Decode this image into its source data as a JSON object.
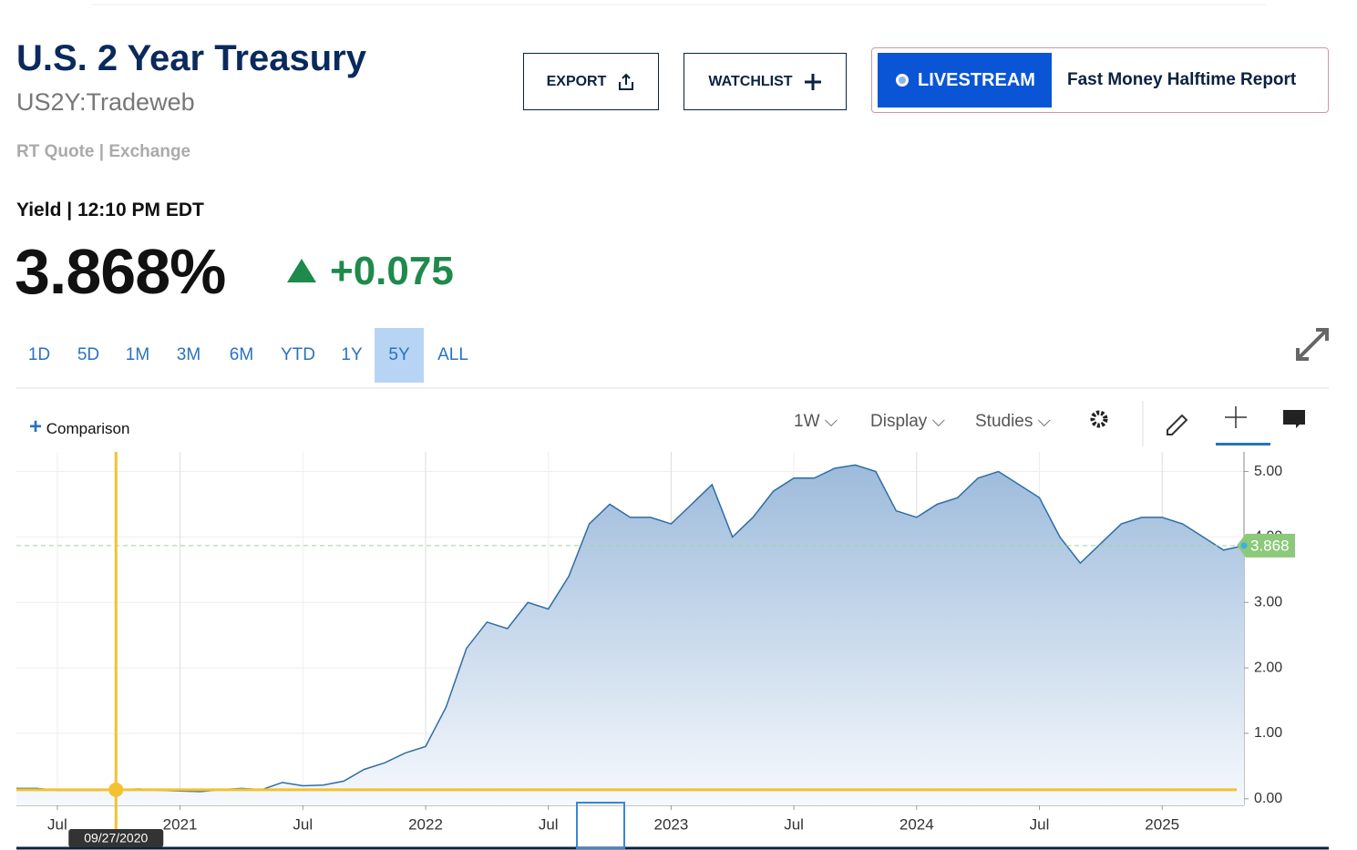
{
  "header": {
    "title": "U.S. 2 Year Treasury",
    "symbol": "US2Y:Tradeweb",
    "quote_source": "RT Quote | Exchange",
    "quote_label": "Yield | 12:10 PM EDT",
    "price": "3.868%",
    "change": "+0.075"
  },
  "buttons": {
    "export": "EXPORT",
    "watchlist": "WATCHLIST",
    "livestream": "LIVESTREAM",
    "show": "Fast Money Halftime Report"
  },
  "ranges": [
    "1D",
    "5D",
    "1M",
    "3M",
    "6M",
    "YTD",
    "1Y",
    "5Y",
    "ALL"
  ],
  "active_range_index": 7,
  "toolbar": {
    "comparison": "Comparison",
    "interval": "1W",
    "display": "Display",
    "studies": "Studies"
  },
  "chart_data": {
    "type": "area",
    "x": [
      "2020-05",
      "2020-06",
      "2020-07",
      "2020-08",
      "2020-09",
      "2020-10",
      "2020-11",
      "2020-12",
      "2021-01",
      "2021-02",
      "2021-03",
      "2021-04",
      "2021-05",
      "2021-06",
      "2021-07",
      "2021-08",
      "2021-09",
      "2021-10",
      "2021-11",
      "2021-12",
      "2022-01",
      "2022-02",
      "2022-03",
      "2022-04",
      "2022-05",
      "2022-06",
      "2022-07",
      "2022-08",
      "2022-09",
      "2022-10",
      "2022-11",
      "2022-12",
      "2023-01",
      "2023-02",
      "2023-03",
      "2023-04",
      "2023-05",
      "2023-06",
      "2023-07",
      "2023-08",
      "2023-09",
      "2023-10",
      "2023-11",
      "2023-12",
      "2024-01",
      "2024-02",
      "2024-03",
      "2024-04",
      "2024-05",
      "2024-06",
      "2024-07",
      "2024-08",
      "2024-09",
      "2024-10",
      "2024-11",
      "2024-12",
      "2025-01",
      "2025-02",
      "2025-03",
      "2025-04",
      "2025-05"
    ],
    "series": [
      {
        "name": "US2Y",
        "color": "#2e6da8",
        "values": [
          0.16,
          0.16,
          0.13,
          0.13,
          0.13,
          0.14,
          0.15,
          0.13,
          0.12,
          0.11,
          0.14,
          0.16,
          0.14,
          0.25,
          0.2,
          0.21,
          0.27,
          0.45,
          0.55,
          0.7,
          0.8,
          1.4,
          2.3,
          2.7,
          2.6,
          3.0,
          2.9,
          3.4,
          4.2,
          4.5,
          4.3,
          4.3,
          4.2,
          4.5,
          4.8,
          4.0,
          4.3,
          4.7,
          4.9,
          4.9,
          5.05,
          5.1,
          5.0,
          4.4,
          4.3,
          4.5,
          4.6,
          4.9,
          5.0,
          4.8,
          4.6,
          4.0,
          3.6,
          3.9,
          4.2,
          4.3,
          4.3,
          4.2,
          4.0,
          3.8,
          3.868
        ]
      }
    ],
    "xlim": [
      "2020-05",
      "2025-05"
    ],
    "xticks": [
      {
        "value": "2020-07",
        "label": "Jul"
      },
      {
        "value": "2021-01",
        "label": "2021"
      },
      {
        "value": "2021-07",
        "label": "Jul"
      },
      {
        "value": "2022-01",
        "label": "2022"
      },
      {
        "value": "2022-07",
        "label": "Jul"
      },
      {
        "value": "2023-01",
        "label": "2023"
      },
      {
        "value": "2023-07",
        "label": "Jul"
      },
      {
        "value": "2024-01",
        "label": "2024"
      },
      {
        "value": "2024-07",
        "label": "Jul"
      },
      {
        "value": "2025-01",
        "label": "2025"
      }
    ],
    "ylim": [
      -0.1,
      5.3
    ],
    "yticks": [
      {
        "value": 0,
        "label": "0.00"
      },
      {
        "value": 1,
        "label": "1.00"
      },
      {
        "value": 2,
        "label": "2.00"
      },
      {
        "value": 3,
        "label": "3.00"
      },
      {
        "value": 4,
        "label": "4.00"
      },
      {
        "value": 5,
        "label": "5.00"
      }
    ],
    "grid": true,
    "crosshair_date": "09/27/2020"
  }
}
